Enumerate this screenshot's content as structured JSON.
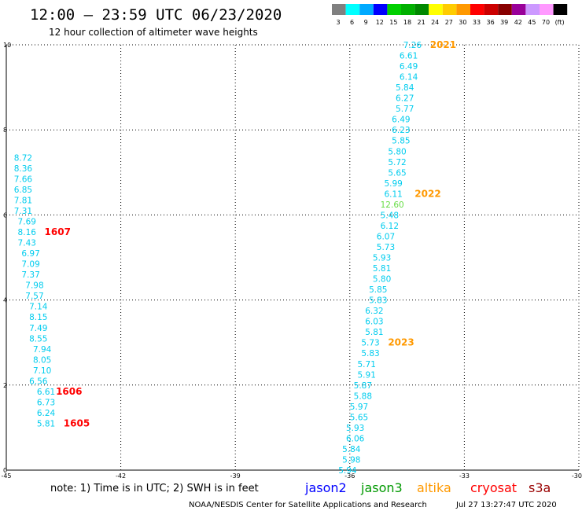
{
  "header": {
    "title": "12:00 – 23:59 UTC 06/23/2020",
    "subtitle": "12 hour collection of altimeter wave heights"
  },
  "color_legend": {
    "colors": [
      "#808080",
      "#00ffff",
      "#00aaff",
      "#0000ff",
      "#00d000",
      "#00b000",
      "#008800",
      "#ffff00",
      "#ffcc00",
      "#ff9900",
      "#ff0000",
      "#cc0000",
      "#880000",
      "#990099",
      "#cc99ff",
      "#ff99ff",
      "#000000"
    ],
    "labels": [
      "3",
      "6",
      "9",
      "12",
      "15",
      "18",
      "21",
      "24",
      "27",
      "30",
      "33",
      "36",
      "39",
      "42",
      "45",
      "70",
      "(ft)"
    ]
  },
  "chart_data": {
    "type": "scatter",
    "title": "12:00 – 23:59 UTC 06/23/2020",
    "subtitle": "12 hour collection of altimeter wave heights",
    "xlim": [
      -45,
      -30
    ],
    "ylim": [
      0,
      10
    ],
    "xticks": [
      "-45",
      "-42",
      "-39",
      "-36",
      "-33",
      "-30"
    ],
    "yticks": [
      "0",
      "2",
      "4",
      "6",
      "8",
      "10"
    ],
    "grid": true,
    "series": [
      {
        "name": "1605",
        "color": "#00ccee",
        "points": [
          {
            "x": -44.2,
            "y": 1.1,
            "label": "5.81"
          },
          {
            "x": -44.2,
            "y": 1.35,
            "label": "6.24"
          },
          {
            "x": -44.2,
            "y": 1.6,
            "label": "6.73"
          },
          {
            "x": -44.2,
            "y": 1.85,
            "label": "6.61"
          }
        ]
      },
      {
        "name": "1606",
        "color": "#00ccee",
        "points": [
          {
            "x": -44.4,
            "y": 2.1,
            "label": "6.56"
          },
          {
            "x": -44.3,
            "y": 2.35,
            "label": "7.10"
          },
          {
            "x": -44.3,
            "y": 2.6,
            "label": "8.05"
          },
          {
            "x": -44.3,
            "y": 2.85,
            "label": "7.94"
          },
          {
            "x": -44.4,
            "y": 3.1,
            "label": "8.55"
          },
          {
            "x": -44.4,
            "y": 3.35,
            "label": "7.49"
          },
          {
            "x": -44.4,
            "y": 3.6,
            "label": "8.15"
          },
          {
            "x": -44.4,
            "y": 3.85,
            "label": "7.14"
          }
        ]
      },
      {
        "name": "1607",
        "color": "#00ccee",
        "points": [
          {
            "x": -44.5,
            "y": 4.1,
            "label": "7.57"
          },
          {
            "x": -44.5,
            "y": 4.35,
            "label": "7.98"
          },
          {
            "x": -44.6,
            "y": 4.6,
            "label": "7.37"
          },
          {
            "x": -44.6,
            "y": 4.85,
            "label": "7.09"
          },
          {
            "x": -44.6,
            "y": 5.1,
            "label": "6.97"
          },
          {
            "x": -44.7,
            "y": 5.35,
            "label": "7.43"
          },
          {
            "x": -44.7,
            "y": 5.6,
            "label": "8.16"
          },
          {
            "x": -44.7,
            "y": 5.85,
            "label": "7.69"
          },
          {
            "x": -44.8,
            "y": 6.1,
            "label": "7.31"
          },
          {
            "x": -44.8,
            "y": 6.35,
            "label": "7.81"
          },
          {
            "x": -44.8,
            "y": 6.6,
            "label": "6.85"
          },
          {
            "x": -44.8,
            "y": 6.85,
            "label": "7.66"
          },
          {
            "x": -44.8,
            "y": 7.1,
            "label": "8.36"
          },
          {
            "x": -44.8,
            "y": 7.35,
            "label": "8.72"
          }
        ]
      },
      {
        "name": "2021",
        "color": "#00ccee",
        "points": [
          {
            "x": -34.6,
            "y": 10.0,
            "label": "7.26"
          },
          {
            "x": -34.7,
            "y": 9.75,
            "label": "6.61"
          },
          {
            "x": -34.7,
            "y": 9.5,
            "label": "6.49"
          },
          {
            "x": -34.7,
            "y": 9.25,
            "label": "6.14"
          },
          {
            "x": -34.8,
            "y": 9.0,
            "label": "5.84"
          },
          {
            "x": -34.8,
            "y": 8.75,
            "label": "6.27"
          },
          {
            "x": -34.8,
            "y": 8.5,
            "label": "5.77"
          },
          {
            "x": -34.9,
            "y": 8.25,
            "label": "6.49"
          },
          {
            "x": -34.9,
            "y": 8.0,
            "label": "6.23"
          }
        ]
      },
      {
        "name": "2022",
        "color": "#00ccee",
        "points": [
          {
            "x": -34.9,
            "y": 7.75,
            "label": "5.85"
          },
          {
            "x": -35.0,
            "y": 7.5,
            "label": "5.80"
          },
          {
            "x": -35.0,
            "y": 7.25,
            "label": "5.72"
          },
          {
            "x": -35.0,
            "y": 7.0,
            "label": "5.65"
          },
          {
            "x": -35.1,
            "y": 6.75,
            "label": "5.99"
          },
          {
            "x": -35.1,
            "y": 6.5,
            "label": "6.11"
          },
          {
            "x": -35.2,
            "y": 6.25,
            "label": "12.60",
            "color": "#66dd44"
          },
          {
            "x": -35.2,
            "y": 6.0,
            "label": "5.48"
          },
          {
            "x": -35.2,
            "y": 5.75,
            "label": "6.12"
          },
          {
            "x": -35.3,
            "y": 5.5,
            "label": "6.07"
          },
          {
            "x": -35.3,
            "y": 5.25,
            "label": "5.73"
          },
          {
            "x": -35.4,
            "y": 5.0,
            "label": "5.93"
          },
          {
            "x": -35.4,
            "y": 4.75,
            "label": "5.81"
          },
          {
            "x": -35.4,
            "y": 4.5,
            "label": "5.80"
          },
          {
            "x": -35.5,
            "y": 4.25,
            "label": "5.85"
          },
          {
            "x": -35.5,
            "y": 4.0,
            "label": "5.83"
          },
          {
            "x": -35.6,
            "y": 3.75,
            "label": "6.32"
          }
        ]
      },
      {
        "name": "2023",
        "color": "#00ccee",
        "points": [
          {
            "x": -35.6,
            "y": 3.5,
            "label": "6.03"
          },
          {
            "x": -35.6,
            "y": 3.25,
            "label": "5.81"
          },
          {
            "x": -35.7,
            "y": 3.0,
            "label": "5.73"
          },
          {
            "x": -35.7,
            "y": 2.75,
            "label": "5.83"
          },
          {
            "x": -35.8,
            "y": 2.5,
            "label": "5.71"
          },
          {
            "x": -35.8,
            "y": 2.25,
            "label": "5.91"
          },
          {
            "x": -35.9,
            "y": 2.0,
            "label": "5.87"
          },
          {
            "x": -35.9,
            "y": 1.75,
            "label": "5.88"
          },
          {
            "x": -36.0,
            "y": 1.5,
            "label": "5.97"
          },
          {
            "x": -36.0,
            "y": 1.25,
            "label": "5.65"
          },
          {
            "x": -36.1,
            "y": 1.0,
            "label": "5.93"
          },
          {
            "x": -36.1,
            "y": 0.75,
            "label": "6.06"
          },
          {
            "x": -36.2,
            "y": 0.5,
            "label": "5.84"
          },
          {
            "x": -36.2,
            "y": 0.25,
            "label": "5.98"
          },
          {
            "x": -36.3,
            "y": 0.0,
            "label": "5.94"
          }
        ]
      }
    ],
    "pass_labels": [
      {
        "text": "1605",
        "x": -43.5,
        "y": 1.1,
        "color": "#ff0000"
      },
      {
        "text": "1606",
        "x": -43.7,
        "y": 1.85,
        "color": "#ff0000"
      },
      {
        "text": "1607",
        "x": -44.0,
        "y": 5.6,
        "color": "#ff0000"
      },
      {
        "text": "2021",
        "x": -33.9,
        "y": 10.0,
        "color": "#ff9900"
      },
      {
        "text": "2022",
        "x": -34.3,
        "y": 6.5,
        "color": "#ff9900"
      },
      {
        "text": "2023",
        "x": -35.0,
        "y": 3.0,
        "color": "#ff9900"
      }
    ]
  },
  "footer": {
    "note": "note:  1) Time is in UTC;  2) SWH is in feet",
    "satellites": [
      {
        "name": "jason2",
        "color": "#0000ff"
      },
      {
        "name": "jason3",
        "color": "#009900"
      },
      {
        "name": "altika",
        "color": "#ff9900"
      },
      {
        "name": "cryosat",
        "color": "#ff0000"
      },
      {
        "name": "s3a",
        "color": "#990000"
      }
    ],
    "credit": "NOAA/NESDIS Center for Satellite Applications and Research",
    "timestamp": "Jul 27 13:27:47 UTC 2020"
  }
}
